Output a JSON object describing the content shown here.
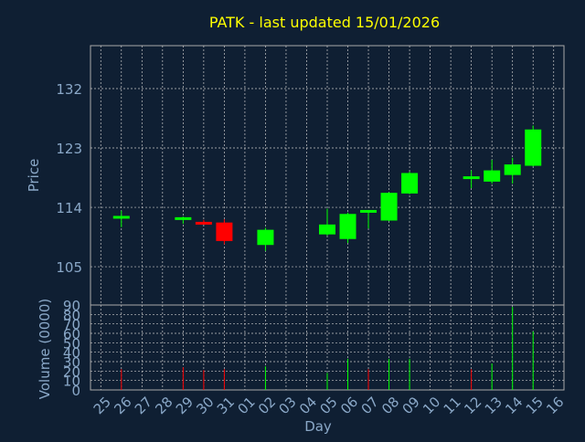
{
  "colors": {
    "background": "#0f1f33",
    "axis_text": "#8aa8c8",
    "title": "#ffff00",
    "frame": "#a9a9a9",
    "grid": "#c8c8c8",
    "up": "#00ff00",
    "down": "#ff0000"
  },
  "chart_data": [
    {
      "type": "candlestick",
      "title": "PATK - last updated 15/01/2026",
      "ylabel": "Price",
      "ylim": [
        99.2,
        138.5
      ],
      "yticks": [
        105,
        114,
        123,
        132
      ],
      "grid": true,
      "x": [
        "26",
        "29",
        "30",
        "31",
        "02",
        "05",
        "06",
        "07",
        "08",
        "09",
        "12",
        "13",
        "14",
        "15"
      ],
      "open": [
        112.3,
        112.2,
        111.8,
        111.7,
        108.3,
        109.9,
        109.2,
        113.3,
        112.0,
        116.1,
        118.3,
        117.9,
        118.9,
        120.3
      ],
      "high": [
        113.5,
        112.6,
        112.1,
        112.2,
        110.9,
        113.8,
        113.2,
        113.6,
        116.3,
        119.4,
        119.6,
        121.2,
        121.5,
        126.4
      ],
      "low": [
        111.0,
        111.5,
        111.4,
        108.4,
        107.4,
        109.7,
        108.6,
        110.8,
        111.9,
        116.0,
        116.9,
        117.6,
        117.6,
        120.2
      ],
      "close": [
        112.7,
        112.5,
        111.6,
        108.9,
        110.6,
        111.4,
        113.0,
        113.6,
        116.2,
        119.2,
        118.7,
        119.6,
        120.5,
        125.8
      ]
    },
    {
      "type": "bar",
      "ylabel": "Volume (0000)",
      "xlabel": "Day",
      "ylim": [
        0,
        90
      ],
      "yticks": [
        0,
        10,
        20,
        30,
        40,
        50,
        60,
        70,
        80,
        90
      ],
      "grid": true,
      "categories": [
        "25",
        "26",
        "27",
        "28",
        "29",
        "30",
        "31",
        "01",
        "02",
        "03",
        "04",
        "05",
        "06",
        "07",
        "08",
        "09",
        "10",
        "11",
        "12",
        "13",
        "14",
        "15",
        "16"
      ],
      "values": [
        0,
        22,
        0,
        0,
        24,
        21,
        22,
        0,
        25,
        0,
        0,
        18,
        33,
        22,
        33,
        33,
        0,
        0,
        22,
        28,
        88,
        62,
        0
      ],
      "direction": [
        "",
        "down",
        "",
        "",
        "down",
        "down",
        "down",
        "",
        "up",
        "",
        "",
        "up",
        "up",
        "down",
        "up",
        "up",
        "",
        "",
        "down",
        "up",
        "up",
        "up",
        ""
      ]
    }
  ]
}
